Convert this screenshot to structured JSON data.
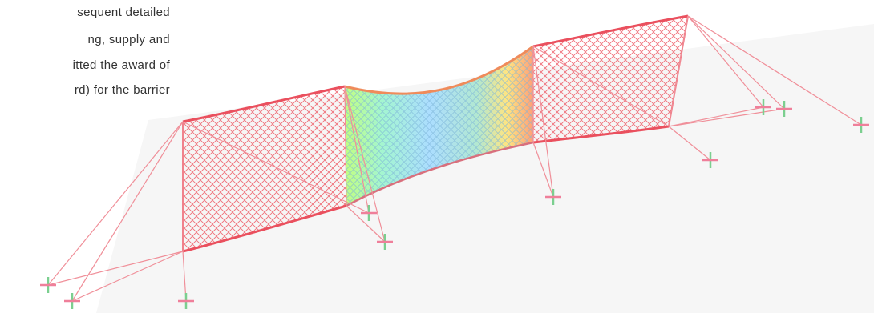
{
  "text_fragment": {
    "lines": [
      "sequent detailed",
      "ng,   supply   and",
      "itted the award of",
      "rd)  for  the  barrier"
    ]
  },
  "diagram": {
    "colors": {
      "net": "#ef5d68",
      "netLight": "#f6a0a7",
      "support": "#f48c96",
      "blue": "#9fd8ff",
      "cyan": "#7ce7e8",
      "green": "#b7ef86",
      "yellow": "#ffe977",
      "orange": "#ff8d56",
      "anchor": "#7bcf8f",
      "shadow": "#f5f5f5"
    }
  }
}
